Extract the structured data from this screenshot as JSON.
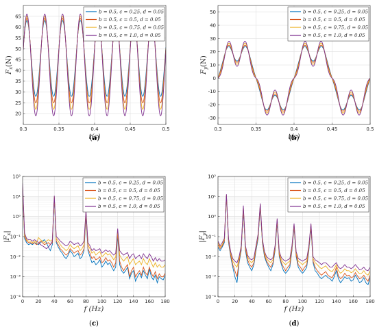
{
  "colors": [
    "#0072BD",
    "#D95319",
    "#EDB120",
    "#7E2F8E"
  ],
  "chart_data": [
    {
      "type": "line",
      "panel_label": "(a)",
      "xlabel": "t(s)",
      "ylabel": "F_x(N)",
      "xlim": [
        0.3,
        0.5
      ],
      "ylim": [
        15,
        70
      ],
      "yscale": "linear",
      "xticks": [
        0.3,
        0.35,
        0.4,
        0.45,
        0.5
      ],
      "xtick_labels": [
        "0.3",
        "0.35",
        "0.4",
        "0.45",
        "0.5"
      ],
      "yticks": [
        20,
        25,
        30,
        35,
        40,
        45,
        50,
        55,
        60,
        65
      ],
      "ytick_labels": [
        "20",
        "25",
        "30",
        "35",
        "40",
        "45",
        "50",
        "55",
        "60",
        "65"
      ],
      "grid": true,
      "legend": "top-right",
      "series": [
        {
          "name": "b = 0.5, c = 0.25, d = 0.05",
          "mean": 45.5,
          "amp": 17.5,
          "freq": 40,
          "phase": 0.3
        },
        {
          "name": "b = 0.5, c = 0.5, d = 0.05",
          "mean": 44.5,
          "amp": 19.5,
          "freq": 40,
          "phase": 0.3
        },
        {
          "name": "b = 0.5, c = 0.75, d = 0.05",
          "mean": 43.5,
          "amp": 21.5,
          "freq": 40,
          "phase": 0.3
        },
        {
          "name": "b = 0.5, c = 1.0, d = 0.05",
          "mean": 42.5,
          "amp": 23.5,
          "freq": 40,
          "phase": 0.3
        }
      ]
    },
    {
      "type": "line",
      "panel_label": "(b)",
      "xlabel": "t(s)",
      "ylabel": "F_y(N)",
      "xlim": [
        0.3,
        0.5
      ],
      "ylim": [
        -35,
        55
      ],
      "yscale": "linear",
      "xticks": [
        0.3,
        0.35,
        0.4,
        0.45,
        0.5
      ],
      "xtick_labels": [
        "0.3",
        "0.35",
        "0.4",
        "0.45",
        "0.5"
      ],
      "yticks": [
        -30,
        -20,
        -10,
        0,
        10,
        20,
        30,
        40,
        50
      ],
      "ytick_labels": [
        "-30",
        "-20",
        "-10",
        "0",
        "10",
        "20",
        "30",
        "40",
        "50"
      ],
      "grid": true,
      "legend": "top-right",
      "series": [
        {
          "name": "b = 0.5, c = 0.25, d = 0.05",
          "a1": 23,
          "a2": 7,
          "a3": 3
        },
        {
          "name": "b = 0.5, c = 0.5, d = 0.05",
          "a1": 23,
          "a2": 7,
          "a3": 4
        },
        {
          "name": "b = 0.5, c = 0.75, d = 0.05",
          "a1": 23,
          "a2": 7,
          "a3": 5.5
        },
        {
          "name": "b = 0.5, c = 1.0, d = 0.05",
          "a1": 23,
          "a2": 7,
          "a3": 7
        }
      ]
    },
    {
      "type": "line",
      "panel_label": "(c)",
      "xlabel": "f (Hz)",
      "ylabel": "|F_x|",
      "xlim": [
        0,
        180
      ],
      "ylim": [
        0.0001,
        100
      ],
      "yscale": "log",
      "xticks": [
        0,
        20,
        40,
        60,
        80,
        100,
        120,
        140,
        160,
        180
      ],
      "xtick_labels": [
        "0",
        "20",
        "40",
        "60",
        "80",
        "100",
        "120",
        "140",
        "160",
        "180"
      ],
      "yticks": [
        0.0001,
        0.001,
        0.01,
        0.1,
        1,
        10,
        100
      ],
      "ytick_labels": [
        "10⁻⁴",
        "10⁻³",
        "10⁻²",
        "10⁻¹",
        "10⁰",
        "10¹",
        "10²"
      ],
      "grid": true,
      "legend": "top-right",
      "x": [
        0,
        2.5,
        5,
        7.5,
        10,
        12.5,
        15,
        17.5,
        20,
        22.5,
        25,
        27.5,
        30,
        32.5,
        35,
        37.5,
        40,
        42.5,
        45,
        47.5,
        50,
        52.5,
        55,
        57.5,
        60,
        62.5,
        65,
        67.5,
        70,
        72.5,
        75,
        77.5,
        80,
        82.5,
        85,
        87.5,
        90,
        92.5,
        95,
        97.5,
        100,
        102.5,
        105,
        107.5,
        110,
        112.5,
        115,
        117.5,
        120,
        122.5,
        125,
        127.5,
        130,
        132.5,
        135,
        137.5,
        140,
        142.5,
        145,
        147.5,
        150,
        152.5,
        155,
        157.5,
        160,
        162.5,
        165,
        167.5,
        170,
        172.5,
        175,
        177.5,
        180
      ],
      "series": [
        {
          "name": "b = 0.5, c = 0.25, d = 0.05",
          "y": [
            25,
            0.08,
            0.05,
            0.04,
            0.045,
            0.04,
            0.05,
            0.045,
            0.04,
            0.05,
            0.06,
            0.07,
            0.05,
            0.03,
            0.02,
            0.04,
            8,
            0.05,
            0.03,
            0.02,
            0.015,
            0.01,
            0.008,
            0.012,
            0.02,
            0.015,
            0.01,
            0.012,
            0.015,
            0.008,
            0.01,
            0.02,
            1.2,
            0.02,
            0.01,
            0.005,
            0.006,
            0.004,
            0.005,
            0.007,
            0.003,
            0.004,
            0.006,
            0.004,
            0.005,
            0.003,
            0.002,
            0.003,
            0.12,
            0.004,
            0.002,
            0.0015,
            0.002,
            0.003,
            0.0008,
            0.0015,
            0.002,
            0.0006,
            0.001,
            0.0015,
            0.0009,
            0.002,
            0.0012,
            0.0008,
            0.0025,
            0.001,
            0.0007,
            0.0012,
            0.0005,
            0.001,
            0.0008,
            0.0007,
            0.0012
          ]
        },
        {
          "name": "b = 0.5, c = 0.5, d = 0.05",
          "y": [
            30,
            0.1,
            0.06,
            0.05,
            0.05,
            0.045,
            0.05,
            0.04,
            0.045,
            0.06,
            0.05,
            0.04,
            0.045,
            0.05,
            0.04,
            0.05,
            9,
            0.06,
            0.04,
            0.025,
            0.02,
            0.015,
            0.012,
            0.015,
            0.025,
            0.02,
            0.015,
            0.018,
            0.02,
            0.012,
            0.015,
            0.025,
            1.5,
            0.025,
            0.015,
            0.008,
            0.01,
            0.007,
            0.008,
            0.01,
            0.005,
            0.006,
            0.009,
            0.006,
            0.007,
            0.005,
            0.003,
            0.005,
            0.16,
            0.006,
            0.003,
            0.002,
            0.003,
            0.004,
            0.001,
            0.002,
            0.003,
            0.001,
            0.0015,
            0.002,
            0.0012,
            0.003,
            0.0016,
            0.0012,
            0.003,
            0.0015,
            0.001,
            0.0018,
            0.0008,
            0.0014,
            0.001,
            0.001,
            0.0015
          ]
        },
        {
          "name": "b = 0.5, c = 0.75, d = 0.05",
          "y": [
            35,
            0.12,
            0.07,
            0.06,
            0.06,
            0.05,
            0.06,
            0.05,
            0.09,
            0.07,
            0.06,
            0.05,
            0.06,
            0.07,
            0.06,
            0.07,
            10,
            0.08,
            0.06,
            0.04,
            0.03,
            0.025,
            0.02,
            0.025,
            0.04,
            0.03,
            0.025,
            0.03,
            0.035,
            0.02,
            0.025,
            0.04,
            1.8,
            0.04,
            0.025,
            0.015,
            0.018,
            0.012,
            0.015,
            0.018,
            0.01,
            0.012,
            0.016,
            0.012,
            0.014,
            0.01,
            0.007,
            0.01,
            0.2,
            0.012,
            0.008,
            0.006,
            0.008,
            0.01,
            0.004,
            0.006,
            0.008,
            0.004,
            0.005,
            0.006,
            0.004,
            0.008,
            0.005,
            0.004,
            0.008,
            0.005,
            0.003,
            0.005,
            0.003,
            0.004,
            0.003,
            0.003,
            0.004
          ]
        },
        {
          "name": "b = 0.5, c = 1.0, d = 0.05",
          "y": [
            45,
            0.15,
            0.08,
            0.07,
            0.07,
            0.06,
            0.07,
            0.06,
            0.05,
            0.04,
            0.035,
            0.03,
            0.025,
            0.03,
            0.04,
            0.06,
            11,
            0.1,
            0.08,
            0.06,
            0.05,
            0.04,
            0.035,
            0.04,
            0.06,
            0.05,
            0.04,
            0.045,
            0.05,
            0.035,
            0.04,
            0.06,
            2,
            0.05,
            0.035,
            0.02,
            0.025,
            0.02,
            0.022,
            0.025,
            0.015,
            0.018,
            0.022,
            0.018,
            0.02,
            0.015,
            0.012,
            0.015,
            0.25,
            0.02,
            0.015,
            0.012,
            0.014,
            0.016,
            0.008,
            0.012,
            0.014,
            0.008,
            0.01,
            0.012,
            0.008,
            0.014,
            0.01,
            0.008,
            0.014,
            0.01,
            0.006,
            0.009,
            0.006,
            0.008,
            0.006,
            0.006,
            0.007
          ]
        }
      ]
    },
    {
      "type": "line",
      "panel_label": "(d)",
      "xlabel": "f (Hz)",
      "ylabel": "|F_y|",
      "xlim": [
        0,
        180
      ],
      "ylim": [
        0.0001,
        100
      ],
      "yscale": "log",
      "xticks": [
        0,
        20,
        40,
        60,
        80,
        100,
        120,
        140,
        160,
        180
      ],
      "xtick_labels": [
        "0",
        "20",
        "40",
        "60",
        "80",
        "100",
        "120",
        "140",
        "160",
        "180"
      ],
      "yticks": [
        0.0001,
        0.001,
        0.01,
        0.1,
        1,
        10,
        100
      ],
      "ytick_labels": [
        "10⁻⁴",
        "10⁻³",
        "10⁻²",
        "10⁻¹",
        "10⁰",
        "10¹",
        "10²"
      ],
      "grid": true,
      "legend": "top-right",
      "x": [
        0,
        2.5,
        5,
        7.5,
        10,
        12.5,
        15,
        17.5,
        20,
        22.5,
        25,
        27.5,
        30,
        32.5,
        35,
        37.5,
        40,
        42.5,
        45,
        47.5,
        50,
        52.5,
        55,
        57.5,
        60,
        62.5,
        65,
        67.5,
        70,
        72.5,
        75,
        77.5,
        80,
        82.5,
        85,
        87.5,
        90,
        92.5,
        95,
        97.5,
        100,
        102.5,
        105,
        107.5,
        110,
        112.5,
        115,
        117.5,
        120,
        122.5,
        125,
        127.5,
        130,
        132.5,
        135,
        137.5,
        140,
        142.5,
        145,
        147.5,
        150,
        152.5,
        155,
        157.5,
        160,
        162.5,
        165,
        167.5,
        170,
        172.5,
        175,
        177.5,
        180
      ],
      "series": [
        {
          "name": "b = 0.5, c = 0.25, d = 0.05",
          "y": [
            0.03,
            0.02,
            0.03,
            0.05,
            10,
            0.05,
            0.01,
            0.003,
            0.001,
            0.0005,
            0.005,
            0.02,
            2,
            0.02,
            0.005,
            0.003,
            0.002,
            0.004,
            0.02,
            0.08,
            3,
            0.05,
            0.01,
            0.005,
            0.003,
            0.002,
            0.004,
            0.02,
            0.5,
            0.01,
            0.004,
            0.002,
            0.0015,
            0.002,
            0.003,
            0.02,
            0.3,
            0.01,
            0.003,
            0.002,
            0.0015,
            0.002,
            0.003,
            0.02,
            0.3,
            0.005,
            0.002,
            0.0015,
            0.001,
            0.0008,
            0.001,
            0.0012,
            0.0009,
            0.0008,
            0.0006,
            0.001,
            0.002,
            0.0008,
            0.0005,
            0.0007,
            0.001,
            0.0008,
            0.0009,
            0.0006,
            0.0007,
            0.0012,
            0.0008,
            0.0005,
            0.0006,
            0.0009,
            0.0005,
            0.0004,
            0.0009
          ]
        },
        {
          "name": "b = 0.5, c = 0.5, d = 0.05",
          "y": [
            0.04,
            0.025,
            0.035,
            0.06,
            11,
            0.06,
            0.012,
            0.004,
            0.002,
            0.001,
            0.006,
            0.025,
            2.5,
            0.025,
            0.007,
            0.004,
            0.003,
            0.005,
            0.025,
            0.1,
            3.5,
            0.06,
            0.012,
            0.006,
            0.004,
            0.003,
            0.005,
            0.025,
            0.6,
            0.012,
            0.005,
            0.003,
            0.002,
            0.003,
            0.004,
            0.025,
            0.35,
            0.012,
            0.004,
            0.003,
            0.002,
            0.003,
            0.004,
            0.025,
            0.35,
            0.006,
            0.003,
            0.002,
            0.0015,
            0.0012,
            0.0015,
            0.0018,
            0.0012,
            0.001,
            0.0009,
            0.0014,
            0.003,
            0.0011,
            0.0008,
            0.001,
            0.0015,
            0.0011,
            0.0012,
            0.0009,
            0.001,
            0.0016,
            0.0011,
            0.0008,
            0.0009,
            0.0012,
            0.0008,
            0.0006,
            0.0012
          ]
        },
        {
          "name": "b = 0.5, c = 0.75, d = 0.05",
          "y": [
            0.05,
            0.03,
            0.04,
            0.07,
            12,
            0.07,
            0.015,
            0.006,
            0.004,
            0.003,
            0.008,
            0.03,
            3,
            0.03,
            0.01,
            0.006,
            0.005,
            0.007,
            0.03,
            0.12,
            4,
            0.07,
            0.015,
            0.008,
            0.006,
            0.005,
            0.007,
            0.03,
            0.7,
            0.015,
            0.007,
            0.005,
            0.004,
            0.005,
            0.006,
            0.03,
            0.4,
            0.015,
            0.006,
            0.005,
            0.004,
            0.005,
            0.006,
            0.03,
            0.4,
            0.008,
            0.005,
            0.004,
            0.003,
            0.0025,
            0.003,
            0.0035,
            0.0025,
            0.002,
            0.0018,
            0.0025,
            0.004,
            0.002,
            0.0015,
            0.0018,
            0.0025,
            0.002,
            0.002,
            0.0016,
            0.0018,
            0.0025,
            0.0018,
            0.0014,
            0.0015,
            0.002,
            0.0014,
            0.0012,
            0.002
          ]
        },
        {
          "name": "b = 0.5, c = 1.0, d = 0.05",
          "y": [
            0.06,
            0.035,
            0.05,
            0.08,
            13,
            0.08,
            0.018,
            0.008,
            0.006,
            0.005,
            0.01,
            0.035,
            3.5,
            0.035,
            0.012,
            0.008,
            0.007,
            0.009,
            0.035,
            0.14,
            4.5,
            0.08,
            0.018,
            0.01,
            0.008,
            0.007,
            0.009,
            0.035,
            0.8,
            0.018,
            0.009,
            0.007,
            0.006,
            0.007,
            0.008,
            0.035,
            0.45,
            0.018,
            0.008,
            0.007,
            0.006,
            0.007,
            0.008,
            0.035,
            0.45,
            0.01,
            0.007,
            0.006,
            0.005,
            0.004,
            0.005,
            0.005,
            0.004,
            0.003,
            0.003,
            0.004,
            0.005,
            0.003,
            0.0025,
            0.003,
            0.004,
            0.003,
            0.003,
            0.0025,
            0.003,
            0.004,
            0.003,
            0.0022,
            0.0024,
            0.003,
            0.0022,
            0.002,
            0.003
          ]
        }
      ]
    }
  ]
}
